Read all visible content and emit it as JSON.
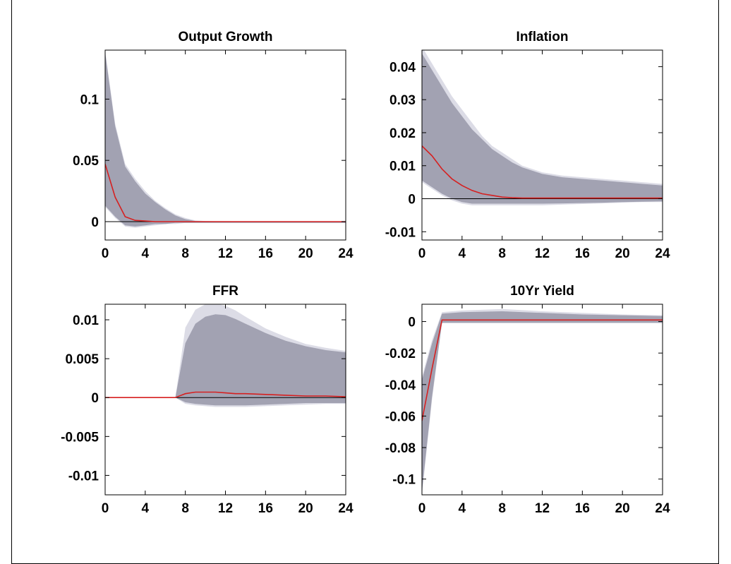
{
  "colors": {
    "outer_band": "#dcdce6",
    "inner_band": "#a2a2b2",
    "median_line": "#d62020",
    "zero_line": "#000000"
  },
  "chart_data": [
    {
      "type": "area",
      "title": "Output Growth",
      "xlim": [
        0,
        24
      ],
      "ylim": [
        -0.015,
        0.14
      ],
      "xticks": [
        0,
        4,
        8,
        12,
        16,
        20,
        24
      ],
      "yticks": [
        0,
        0.05,
        0.1
      ],
      "ytick_labels": [
        "0",
        "0.05",
        "0.1"
      ],
      "zero_line": true,
      "x": [
        0,
        1,
        2,
        3,
        4,
        5,
        6,
        7,
        8,
        9,
        10,
        12,
        14,
        16,
        18,
        20,
        22,
        24
      ],
      "series": [
        {
          "role": "outer_band",
          "lower": [
            0.012,
            0.003,
            -0.004,
            -0.005,
            -0.004,
            -0.003,
            -0.002,
            -0.002,
            -0.001,
            -0.001,
            -0.001,
            -0.001,
            -0.001,
            -0.001,
            -0.001,
            -0.001,
            -0.001,
            -0.001
          ],
          "upper": [
            0.14,
            0.08,
            0.047,
            0.035,
            0.025,
            0.017,
            0.011,
            0.006,
            0.003,
            0.001,
            0.0005,
            0.0003,
            0.0002,
            0.0001,
            0.0001,
            0.0001,
            0.0001,
            0.0001
          ]
        },
        {
          "role": "inner_band",
          "lower": [
            0.013,
            0.004,
            -0.003,
            -0.004,
            -0.003,
            -0.002,
            -0.002,
            -0.001,
            -0.001,
            -0.001,
            -0.001,
            -0.001,
            -0.001,
            -0.001,
            -0.001,
            -0.001,
            -0.001,
            -0.001
          ],
          "upper": [
            0.138,
            0.078,
            0.045,
            0.033,
            0.023,
            0.016,
            0.01,
            0.005,
            0.002,
            0.0005,
            0.0003,
            0.0002,
            0.0001,
            0.0001,
            0.0001,
            0.0001,
            0.0001,
            0.0001
          ]
        },
        {
          "role": "median",
          "values": [
            0.047,
            0.02,
            0.004,
            0.001,
            0.0005,
            0,
            0,
            0,
            0,
            0,
            0,
            0,
            0,
            0,
            0,
            0,
            0,
            0
          ]
        }
      ]
    },
    {
      "type": "area",
      "title": "Inflation",
      "xlim": [
        0,
        24
      ],
      "ylim": [
        -0.0125,
        0.045
      ],
      "xticks": [
        0,
        4,
        8,
        12,
        16,
        20,
        24
      ],
      "yticks": [
        -0.01,
        0,
        0.01,
        0.02,
        0.03,
        0.04
      ],
      "ytick_labels": [
        "-0.01",
        "0",
        "0.01",
        "0.02",
        "0.03",
        "0.04"
      ],
      "zero_line": true,
      "x": [
        0,
        1,
        2,
        3,
        4,
        5,
        6,
        7,
        8,
        9,
        10,
        12,
        14,
        16,
        18,
        20,
        22,
        24
      ],
      "series": [
        {
          "role": "outer_band",
          "lower": [
            0.005,
            0.003,
            0.001,
            -0.0005,
            -0.0015,
            -0.002,
            -0.002,
            -0.002,
            -0.002,
            -0.002,
            -0.002,
            -0.002,
            -0.0018,
            -0.0016,
            -0.0014,
            -0.0012,
            -0.001,
            -0.001
          ],
          "upper": [
            0.046,
            0.041,
            0.036,
            0.031,
            0.027,
            0.023,
            0.019,
            0.016,
            0.014,
            0.012,
            0.01,
            0.008,
            0.007,
            0.0065,
            0.006,
            0.0055,
            0.005,
            0.0045
          ]
        },
        {
          "role": "inner_band",
          "lower": [
            0.0055,
            0.0035,
            0.0015,
            0,
            -0.001,
            -0.0015,
            -0.0015,
            -0.0015,
            -0.0015,
            -0.0015,
            -0.0015,
            -0.0015,
            -0.0014,
            -0.0013,
            -0.0012,
            -0.001,
            -0.0009,
            -0.0008
          ],
          "upper": [
            0.044,
            0.039,
            0.034,
            0.029,
            0.025,
            0.021,
            0.018,
            0.015,
            0.013,
            0.011,
            0.0095,
            0.0075,
            0.0065,
            0.006,
            0.0055,
            0.005,
            0.0045,
            0.004
          ]
        },
        {
          "role": "median",
          "values": [
            0.016,
            0.013,
            0.009,
            0.006,
            0.004,
            0.0025,
            0.0015,
            0.001,
            0.0005,
            0.0003,
            0.0002,
            0.0002,
            0.0002,
            0.0002,
            0.0002,
            0.0002,
            0.0002,
            0.0002
          ]
        }
      ]
    },
    {
      "type": "area",
      "title": "FFR",
      "xlim": [
        0,
        24
      ],
      "ylim": [
        -0.0125,
        0.012
      ],
      "xticks": [
        0,
        4,
        8,
        12,
        16,
        20,
        24
      ],
      "yticks": [
        -0.01,
        -0.005,
        0,
        0.005,
        0.01
      ],
      "ytick_labels": [
        "-0.01",
        "-0.005",
        "0",
        "0.005",
        "0.01"
      ],
      "zero_line": true,
      "x": [
        0,
        7,
        8,
        9,
        10,
        11,
        12,
        13,
        14,
        16,
        18,
        20,
        22,
        24
      ],
      "series": [
        {
          "role": "outer_band",
          "lower": [
            0,
            0,
            -0.0008,
            -0.001,
            -0.0011,
            -0.0012,
            -0.0012,
            -0.0012,
            -0.0012,
            -0.0011,
            -0.001,
            -0.0009,
            -0.0008,
            -0.0008
          ],
          "upper": [
            0,
            0,
            0.009,
            0.0113,
            0.012,
            0.0121,
            0.0118,
            0.0112,
            0.0104,
            0.0089,
            0.0078,
            0.0069,
            0.0064,
            0.006
          ]
        },
        {
          "role": "inner_band",
          "lower": [
            0,
            0,
            -0.0006,
            -0.0008,
            -0.0009,
            -0.001,
            -0.001,
            -0.001,
            -0.001,
            -0.0009,
            -0.0008,
            -0.0007,
            -0.0007,
            -0.0007
          ],
          "upper": [
            0,
            0,
            0.007,
            0.0095,
            0.0104,
            0.0107,
            0.0106,
            0.0101,
            0.0095,
            0.0083,
            0.0073,
            0.0066,
            0.0061,
            0.0058
          ]
        },
        {
          "role": "median",
          "values": [
            0,
            0,
            0.0005,
            0.0007,
            0.0007,
            0.0007,
            0.0006,
            0.0005,
            0.0005,
            0.0004,
            0.0003,
            0.0002,
            0.0002,
            0.0001
          ]
        }
      ]
    },
    {
      "type": "area",
      "title": "10Yr Yield",
      "xlim": [
        0,
        24
      ],
      "ylim": [
        -0.11,
        0.011
      ],
      "xticks": [
        0,
        4,
        8,
        12,
        16,
        20,
        24
      ],
      "yticks": [
        -0.1,
        -0.08,
        -0.06,
        -0.04,
        -0.02,
        0
      ],
      "ytick_labels": [
        "-0.1",
        "-0.08",
        "-0.06",
        "-0.04",
        "-0.02",
        "0"
      ],
      "zero_line": false,
      "x": [
        0,
        1,
        2,
        4,
        8,
        12,
        16,
        20,
        24
      ],
      "series": [
        {
          "role": "outer_band",
          "lower": [
            -0.11,
            -0.05,
            -0.001,
            -0.001,
            -0.001,
            -0.001,
            -0.001,
            -0.001,
            -0.001
          ],
          "upper": [
            -0.035,
            -0.012,
            0.006,
            0.007,
            0.008,
            0.0065,
            0.0055,
            0.0045,
            0.004
          ]
        },
        {
          "role": "inner_band",
          "lower": [
            -0.108,
            -0.048,
            -0.0008,
            -0.0008,
            -0.0008,
            -0.0008,
            -0.0008,
            -0.0008,
            -0.0008
          ],
          "upper": [
            -0.037,
            -0.014,
            0.005,
            0.006,
            0.0065,
            0.0055,
            0.0045,
            0.004,
            0.0035
          ]
        },
        {
          "role": "median",
          "values": [
            -0.063,
            -0.03,
            0.001,
            0.001,
            0.001,
            0.001,
            0.001,
            0.001,
            0.001
          ]
        }
      ]
    }
  ]
}
